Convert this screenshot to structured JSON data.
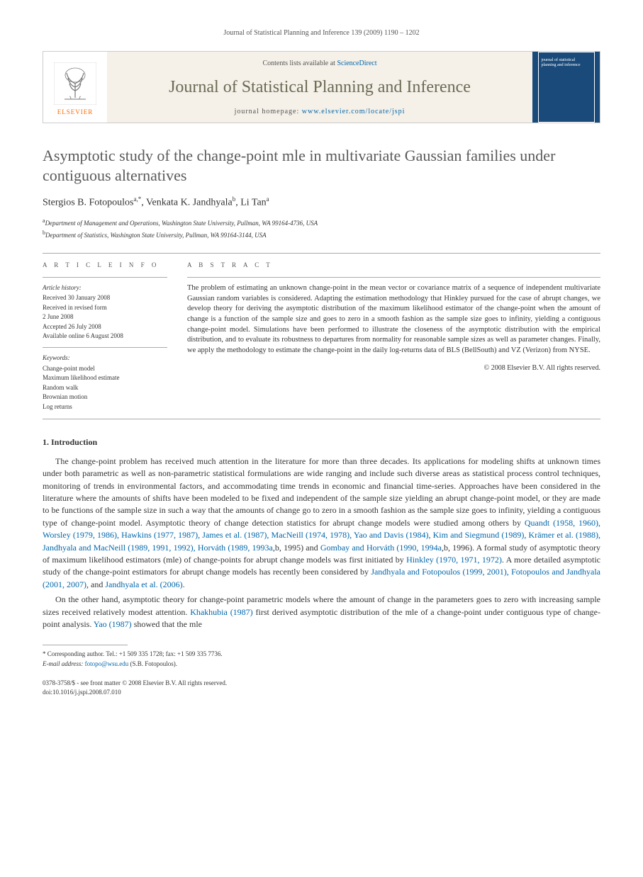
{
  "colors": {
    "link": "#0066aa",
    "masthead_bg": "#f5f0e8",
    "journal_name": "#6a6a55",
    "cover_bg": "#1a4a7a",
    "elsevier_orange": "#ff6600",
    "rule": "#aaaaaa",
    "body_text": "#333333"
  },
  "running_header": "Journal of Statistical Planning and Inference 139 (2009) 1190 – 1202",
  "masthead": {
    "publisher": "ELSEVIER",
    "contents_prefix": "Contents lists available at ",
    "contents_link_text": "ScienceDirect",
    "journal_name": "Journal of Statistical Planning and Inference",
    "homepage_prefix": "journal homepage: ",
    "homepage_url_text": "www.elsevier.com/locate/jspi",
    "cover_caption": "journal of statistical planning and inference"
  },
  "article": {
    "title": "Asymptotic study of the change-point mle in multivariate Gaussian families under contiguous alternatives",
    "authors_html": "Stergios B. Fotopoulos<sup>a,*</sup>, Venkata K. Jandhyala<sup>b</sup>, Li Tan<sup>a</sup>",
    "affiliations": [
      {
        "mark": "a",
        "text": "Department of Management and Operations, Washington State University, Pullman, WA 99164-4736, USA"
      },
      {
        "mark": "b",
        "text": "Department of Statistics, Washington State University, Pullman, WA 99164-3144, USA"
      }
    ]
  },
  "article_info": {
    "label": "A R T I C L E   I N F O",
    "history_label": "Article history:",
    "history": [
      "Received 30 January 2008",
      "Received in revised form",
      "2 June 2008",
      "Accepted 26 July 2008",
      "Available online 6 August 2008"
    ],
    "keywords_label": "Keywords:",
    "keywords": [
      "Change-point model",
      "Maximum likelihood estimate",
      "Random walk",
      "Brownian motion",
      "Log returns"
    ]
  },
  "abstract": {
    "label": "A B S T R A C T",
    "text": "The problem of estimating an unknown change-point in the mean vector or covariance matrix of a sequence of independent multivariate Gaussian random variables is considered. Adapting the estimation methodology that Hinkley pursued for the case of abrupt changes, we develop theory for deriving the asymptotic distribution of the maximum likelihood estimator of the change-point when the amount of change is a function of the sample size and goes to zero in a smooth fashion as the sample size goes to infinity, yielding a contiguous change-point model. Simulations have been performed to illustrate the closeness of the asymptotic distribution with the empirical distribution, and to evaluate its robustness to departures from normality for reasonable sample sizes as well as parameter changes. Finally, we apply the methodology to estimate the change-point in the daily log-returns data of BLS (BellSouth) and VZ (Verizon) from NYSE.",
    "copyright": "© 2008 Elsevier B.V. All rights reserved."
  },
  "body": {
    "section_heading": "1. Introduction",
    "para1_pre": "The change-point problem has received much attention in the literature for more than three decades. Its applications for modeling shifts at unknown times under both parametric as well as non-parametric statistical formulations are wide ranging and include such diverse areas as statistical process control techniques, monitoring of trends in environmental factors, and accommodating time trends in economic and financial time-series. Approaches have been considered in the literature where the amounts of shifts have been modeled to be fixed and independent of the sample size yielding an abrupt change-point model, or they are made to be functions of the sample size in such a way that the amounts of change go to zero in a smooth fashion as the sample size goes to infinity, yielding a contiguous type of change-point model. Asymptotic theory of change detection statistics for abrupt change models were studied among others by ",
    "cites1": "Quandt (1958, 1960), Worsley (1979, 1986), Hawkins (1977, 1987), James et al. (1987), MacNeill (1974, 1978), Yao and Davis (1984), Kim and Siegmund (1989), Krämer et al. (1988), Jandhyala and MacNeill (1989, 1991, 1992), Horváth (1989, 1993a",
    "para1_mid1": ",b, 1995) and ",
    "cites1b": "Gombay and Horváth (1990, 1994a",
    "para1_mid2": ",b, 1996). A formal study of asymptotic theory of maximum likelihood estimators (mle) of change-points for abrupt change models was first initiated by ",
    "cites2": "Hinkley (1970, 1971, 1972)",
    "para1_mid3": ". A more detailed asymptotic study of the change-point estimators for abrupt change models has recently been considered by ",
    "cites3": "Jandhyala and Fotopoulos (1999, 2001), Fotopoulos and Jandhyala (2001, 2007)",
    "para1_mid4": ", and ",
    "cites4": "Jandhyala et al. (2006)",
    "para1_end": ".",
    "para2_pre": "On the other hand, asymptotic theory for change-point parametric models where the amount of change in the parameters goes to zero with increasing sample sizes received relatively modest attention. ",
    "cites5": "Khakhubia (1987)",
    "para2_mid1": " first derived asymptotic distribution of the mle of a change-point under contiguous type of change-point analysis. ",
    "cites6": "Yao (1987)",
    "para2_end": " showed that the mle"
  },
  "footnote": {
    "corresponding": "* Corresponding author. Tel.: +1 509 335 1728; fax: +1 509 335 7736.",
    "email_label": "E-mail address:",
    "email": "fotopo@wsu.edu",
    "email_who": "(S.B. Fotopoulos)."
  },
  "footer": {
    "line1": "0378-3758/$ - see front matter © 2008 Elsevier B.V. All rights reserved.",
    "line2": "doi:10.1016/j.jspi.2008.07.010"
  }
}
